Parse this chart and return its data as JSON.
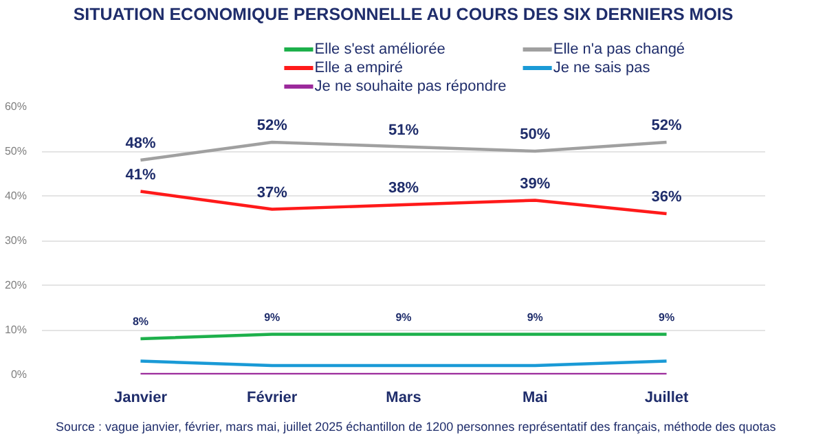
{
  "chart_data": {
    "type": "line",
    "title": "SITUATION ECONOMIQUE PERSONNELLE AU COURS DES SIX DERNIERS MOIS",
    "categories": [
      "Janvier",
      "Février",
      "Mars",
      "Mai",
      "Juillet"
    ],
    "series": [
      {
        "name": "Elle s'est améliorée",
        "color": "#1db04b",
        "values": [
          8,
          9,
          9,
          9,
          9
        ],
        "value_labels": [
          "8%",
          "9%",
          "9%",
          "9%",
          "9%"
        ]
      },
      {
        "name": "Elle n'a pas changé",
        "color": "#a0a0a0",
        "values": [
          48,
          52,
          51,
          50,
          52
        ],
        "value_labels": [
          "48%",
          "52%",
          "51%",
          "50%",
          "52%"
        ]
      },
      {
        "name": "Elle a empiré",
        "color": "#ff1a1a",
        "values": [
          41,
          37,
          38,
          39,
          36
        ],
        "value_labels": [
          "41%",
          "37%",
          "38%",
          "39%",
          "36%"
        ]
      },
      {
        "name": "Je ne sais pas",
        "color": "#1a9ad6",
        "values": [
          3,
          2,
          2,
          2,
          3
        ]
      },
      {
        "name": "Je ne souhaite pas répondre",
        "color": "#9b2a9b",
        "values": [
          0,
          0,
          0,
          0,
          0
        ]
      }
    ],
    "ylim": [
      0,
      60
    ],
    "yticks": [
      {
        "value": 0,
        "label": "0%"
      },
      {
        "value": 10,
        "label": "10%"
      },
      {
        "value": 20,
        "label": "20%"
      },
      {
        "value": 30,
        "label": "30%"
      },
      {
        "value": 40,
        "label": "40%"
      },
      {
        "value": 50,
        "label": "50%"
      },
      {
        "value": 60,
        "label": "60%"
      }
    ],
    "grid": "y",
    "legend": "top",
    "marker": "none",
    "line_style": "solid",
    "annotations": [
      "Source : vague janvier, février, mars  mai, juillet 2025 échantillon de 1200 personnes représentatif des français, méthode des quotas"
    ]
  }
}
